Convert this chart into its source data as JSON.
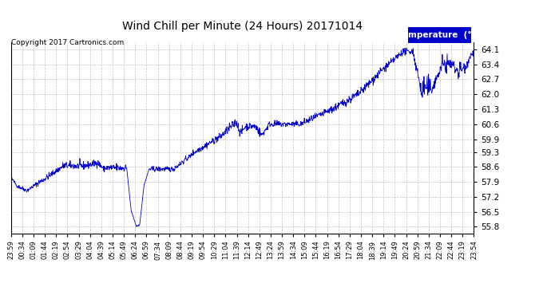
{
  "title": "Wind Chill per Minute (24 Hours) 20171014",
  "copyright": "Copyright 2017 Cartronics.com",
  "legend_label": "Temperature  (°F)",
  "line_color": "#0000cc",
  "legend_bg": "#0000cc",
  "legend_text_color": "#ffffff",
  "background_color": "#ffffff",
  "grid_color": "#aaaaaa",
  "yticks": [
    55.8,
    56.5,
    57.2,
    57.9,
    58.6,
    59.3,
    59.9,
    60.6,
    61.3,
    62.0,
    62.7,
    63.4,
    64.1
  ],
  "ylim": [
    55.5,
    64.45
  ],
  "xtick_labels": [
    "23:59",
    "00:34",
    "01:09",
    "01:44",
    "02:19",
    "02:54",
    "03:29",
    "04:04",
    "04:39",
    "05:14",
    "05:49",
    "06:24",
    "06:59",
    "07:34",
    "08:09",
    "08:44",
    "09:19",
    "09:54",
    "10:29",
    "11:04",
    "11:39",
    "12:14",
    "12:49",
    "13:24",
    "13:59",
    "14:34",
    "15:09",
    "15:44",
    "16:19",
    "16:54",
    "17:29",
    "18:04",
    "18:39",
    "19:14",
    "19:49",
    "20:24",
    "20:59",
    "21:34",
    "22:09",
    "22:44",
    "23:19",
    "23:54"
  ],
  "n_points": 1440,
  "seed": 42
}
